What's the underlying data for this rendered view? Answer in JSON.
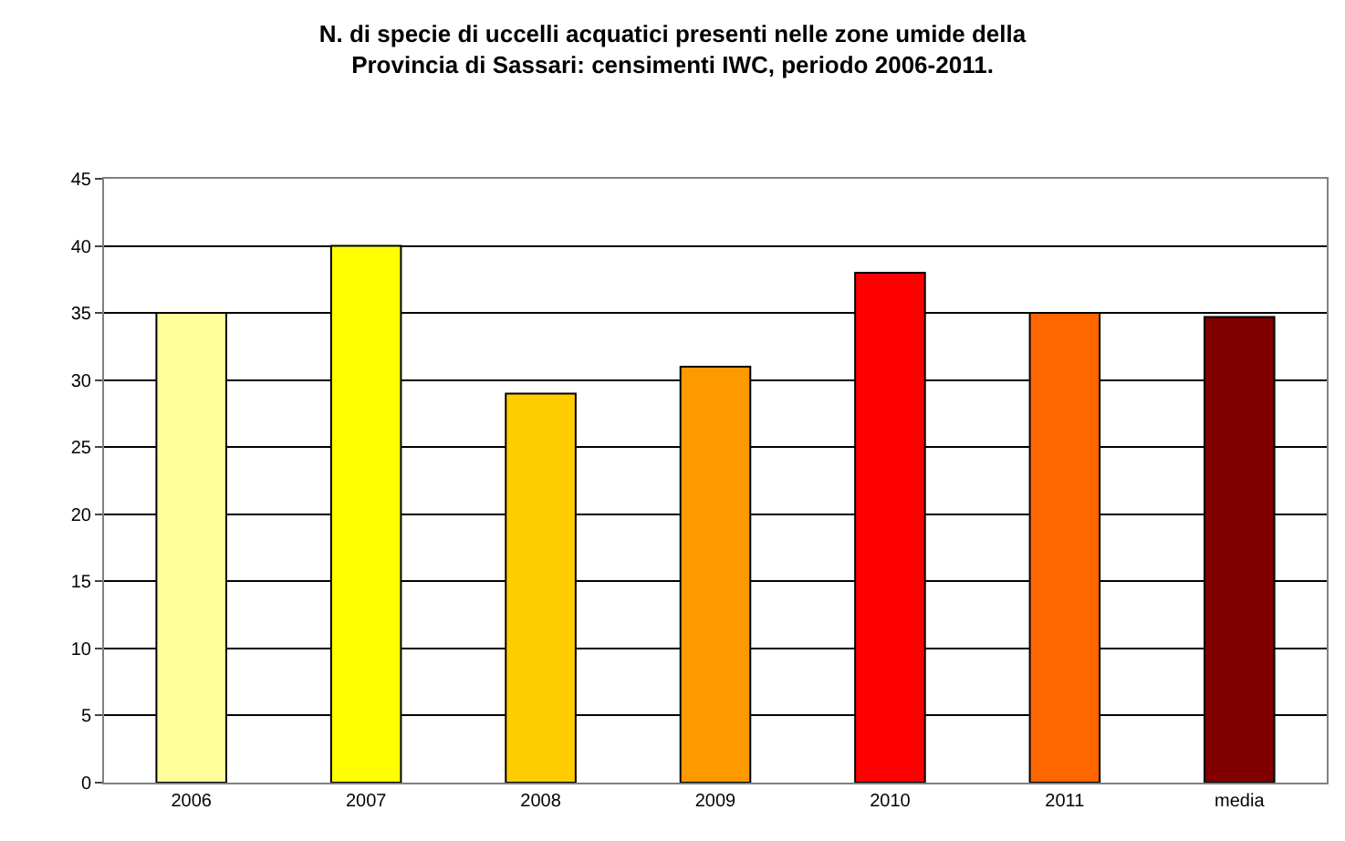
{
  "chart_data": {
    "type": "bar",
    "title": "N. di specie di uccelli acquatici presenti nelle zone umide della\nProvincia di Sassari: censimenti IWC, periodo 2006-2011.",
    "categories": [
      "2006",
      "2007",
      "2008",
      "2009",
      "2010",
      "2011",
      "media"
    ],
    "values": [
      35,
      40,
      29,
      31,
      38,
      35,
      34.7
    ],
    "colors": [
      "#ffff99",
      "#ffff00",
      "#ffcc00",
      "#ff9900",
      "#ff0000",
      "#ff6600",
      "#800000"
    ],
    "ylim": [
      0,
      45
    ],
    "yticks": [
      0,
      5,
      10,
      15,
      20,
      25,
      30,
      35,
      40,
      45
    ],
    "grid": "y"
  }
}
